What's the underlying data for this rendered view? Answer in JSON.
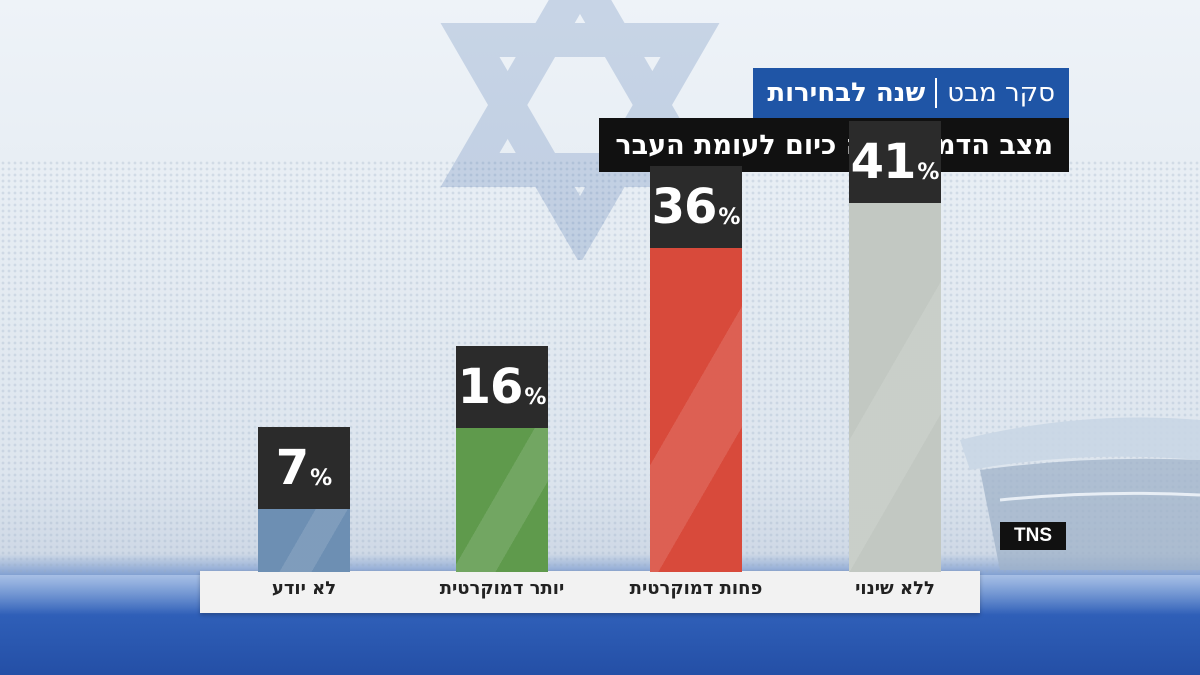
{
  "header": {
    "program": "סקר מבט",
    "subtitle": "שנה לבחירות",
    "question": "מצב הדמוקרטיה כיום לעומת העבר"
  },
  "source_label": "TNS",
  "colors": {
    "header_blue": "#1f55a6",
    "header_black": "#111111",
    "value_box": "#2b2b2b"
  },
  "chart_data": {
    "type": "bar",
    "title": "מצב הדמוקרטיה כיום לעומת העבר",
    "categories": [
      "ללא שינוי",
      "פחות דמוקרטית",
      "יותר דמוקרטית",
      "לא יודע"
    ],
    "values": [
      41,
      36,
      16,
      7
    ],
    "value_suffix": "%",
    "colors": [
      "#c2c8c2",
      "#d84a3b",
      "#5f9a4c",
      "#6d8fb3"
    ],
    "ylim": [
      0,
      45
    ],
    "grid": false
  }
}
